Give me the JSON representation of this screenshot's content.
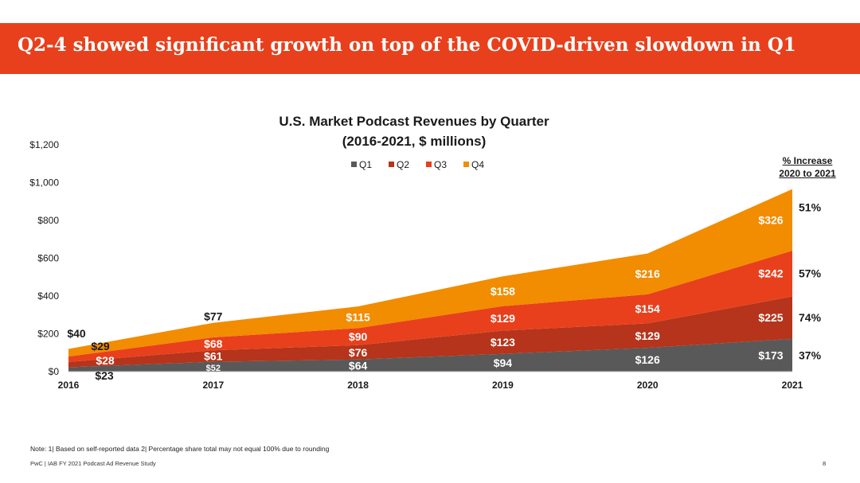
{
  "header": {
    "title": "Q2-4 showed significant growth on top of the COVID-driven slowdown in Q1"
  },
  "chart_data": {
    "type": "area",
    "stacked": true,
    "title_line1": "U.S. Market Podcast Revenues by Quarter",
    "title_line2": "(2016-2021, $ millions)",
    "categories": [
      "2016",
      "2017",
      "2018",
      "2019",
      "2020",
      "2021"
    ],
    "y_ticks": [
      "$0",
      "$200",
      "$400",
      "$600",
      "$800",
      "$1,000",
      "$1,200"
    ],
    "ylim": [
      0,
      1200
    ],
    "legend_position": "top-center",
    "series": [
      {
        "name": "Q1",
        "color": "#595959",
        "values": [
          23,
          52,
          64,
          94,
          126,
          173
        ],
        "labels": [
          "$23",
          "$52",
          "$64",
          "$94",
          "$126",
          "$173"
        ]
      },
      {
        "name": "Q2",
        "color": "#b5341b",
        "values": [
          28,
          61,
          76,
          123,
          129,
          225
        ],
        "labels": [
          "$28",
          "$61",
          "$76",
          "$123",
          "$129",
          "$225"
        ]
      },
      {
        "name": "Q3",
        "color": "#e8401c",
        "values": [
          29,
          68,
          90,
          129,
          154,
          242
        ],
        "labels": [
          "$29",
          "$68",
          "$90",
          "$129",
          "$154",
          "$242"
        ]
      },
      {
        "name": "Q4",
        "color": "#f28c00",
        "values": [
          40,
          77,
          115,
          158,
          216,
          326
        ],
        "labels": [
          "$40",
          "$77",
          "$115",
          "$158",
          "$216",
          "$326"
        ]
      }
    ],
    "pct_increase": {
      "header_line1": "% Increase",
      "header_line2": "2020 to 2021",
      "values": {
        "Q1": "37%",
        "Q2": "74%",
        "Q3": "57%",
        "Q4": "51%"
      }
    }
  },
  "note": "Note: 1| Based on self-reported data 2| Percentage share total may not equal 100% due to rounding",
  "footer": "PwC  |  IAB FY 2021 Podcast Ad Revenue Study",
  "page_number": "8"
}
